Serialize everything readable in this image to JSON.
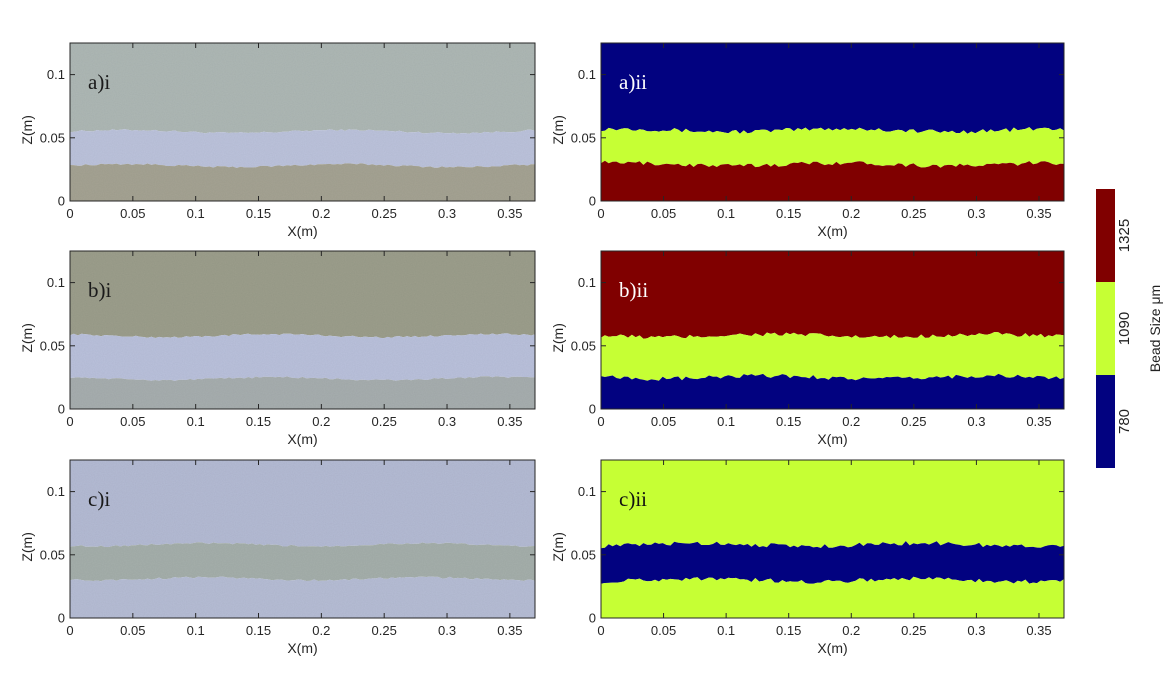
{
  "colors": {
    "c780": "#020280",
    "c1090": "#c6ff34",
    "c1325": "#800000",
    "photo_light": "#b6bfd8",
    "photo_mid": "#aab2a8",
    "photo_dark": "#9a9a86"
  },
  "colorbar": {
    "title": "Bead Size μm",
    "levels": [
      {
        "value": "780",
        "color": "#020280"
      },
      {
        "value": "1090",
        "color": "#c6ff34"
      },
      {
        "value": "1325",
        "color": "#800000"
      }
    ]
  },
  "chart_data": [
    {
      "id": "a-i",
      "type": "heatmap",
      "style": "photo",
      "panel_label": "a)i",
      "xlabel": "X(m)",
      "ylabel": "Z(m)",
      "xlim": [
        0,
        0.37
      ],
      "ylim": [
        0,
        0.125
      ],
      "xticks": [
        "0",
        "0.05",
        "0.1",
        "0.15",
        "0.2",
        "0.25",
        "0.3",
        "0.35"
      ],
      "yticks": [
        "0",
        "0.05",
        "0.1"
      ],
      "bands": [
        {
          "z_from": 0.125,
          "z_to": 0.055,
          "color": "#aeb8b5"
        },
        {
          "z_from": 0.055,
          "z_to": 0.028,
          "color": "#bcc3dc"
        },
        {
          "z_from": 0.028,
          "z_to": 0,
          "color": "#a5a393"
        }
      ]
    },
    {
      "id": "a-ii",
      "type": "heatmap",
      "style": "classified",
      "panel_label": "a)ii",
      "xlabel": "X(m)",
      "ylabel": "Z(m)",
      "xlim": [
        0,
        0.37
      ],
      "ylim": [
        0,
        0.125
      ],
      "xticks": [
        "0",
        "0.05",
        "0.1",
        "0.15",
        "0.2",
        "0.25",
        "0.3",
        "0.35"
      ],
      "yticks": [
        "0",
        "0.05",
        "0.1"
      ],
      "bands": [
        {
          "z_from": 0.125,
          "z_to": 0.056,
          "color": "#020280",
          "bead_size": 780
        },
        {
          "z_from": 0.056,
          "z_to": 0.029,
          "color": "#c6ff34",
          "bead_size": 1090
        },
        {
          "z_from": 0.029,
          "z_to": 0,
          "color": "#800000",
          "bead_size": 1325
        }
      ]
    },
    {
      "id": "b-i",
      "type": "heatmap",
      "style": "photo",
      "panel_label": "b)i",
      "xlabel": "X(m)",
      "ylabel": "Z(m)",
      "xlim": [
        0,
        0.37
      ],
      "ylim": [
        0,
        0.125
      ],
      "xticks": [
        "0",
        "0.05",
        "0.1",
        "0.15",
        "0.2",
        "0.25",
        "0.3",
        "0.35"
      ],
      "yticks": [
        "0",
        "0.05",
        "0.1"
      ],
      "bands": [
        {
          "z_from": 0.125,
          "z_to": 0.058,
          "color": "#9c9e8c"
        },
        {
          "z_from": 0.058,
          "z_to": 0.024,
          "color": "#bac1dc"
        },
        {
          "z_from": 0.024,
          "z_to": 0,
          "color": "#a7aeaf"
        }
      ]
    },
    {
      "id": "b-ii",
      "type": "heatmap",
      "style": "classified",
      "panel_label": "b)ii",
      "xlabel": "X(m)",
      "ylabel": "Z(m)",
      "xlim": [
        0,
        0.37
      ],
      "ylim": [
        0,
        0.125
      ],
      "xticks": [
        "0",
        "0.05",
        "0.1",
        "0.15",
        "0.2",
        "0.25",
        "0.3",
        "0.35"
      ],
      "yticks": [
        "0",
        "0.05",
        "0.1"
      ],
      "bands": [
        {
          "z_from": 0.125,
          "z_to": 0.058,
          "color": "#800000",
          "bead_size": 1325
        },
        {
          "z_from": 0.058,
          "z_to": 0.025,
          "color": "#c6ff34",
          "bead_size": 1090
        },
        {
          "z_from": 0.025,
          "z_to": 0,
          "color": "#020280",
          "bead_size": 780
        }
      ]
    },
    {
      "id": "c-i",
      "type": "heatmap",
      "style": "photo",
      "panel_label": "c)i",
      "xlabel": "X(m)",
      "ylabel": "Z(m)",
      "xlim": [
        0,
        0.37
      ],
      "ylim": [
        0,
        0.125
      ],
      "xticks": [
        "0",
        "0.05",
        "0.1",
        "0.15",
        "0.2",
        "0.25",
        "0.3",
        "0.35"
      ],
      "yticks": [
        "0",
        "0.05",
        "0.1"
      ],
      "bands": [
        {
          "z_from": 0.125,
          "z_to": 0.058,
          "color": "#b4bbd4"
        },
        {
          "z_from": 0.058,
          "z_to": 0.031,
          "color": "#a5afab"
        },
        {
          "z_from": 0.031,
          "z_to": 0,
          "color": "#b6bdd5"
        }
      ]
    },
    {
      "id": "c-ii",
      "type": "heatmap",
      "style": "classified",
      "panel_label": "c)ii",
      "xlabel": "X(m)",
      "ylabel": "Z(m)",
      "xlim": [
        0,
        0.37
      ],
      "ylim": [
        0,
        0.125
      ],
      "xticks": [
        "0",
        "0.05",
        "0.1",
        "0.15",
        "0.2",
        "0.25",
        "0.3",
        "0.35"
      ],
      "yticks": [
        "0",
        "0.05",
        "0.1"
      ],
      "bands": [
        {
          "z_from": 0.125,
          "z_to": 0.058,
          "color": "#c6ff34",
          "bead_size": 1090
        },
        {
          "z_from": 0.058,
          "z_to": 0.03,
          "color": "#020280",
          "bead_size": 780
        },
        {
          "z_from": 0.03,
          "z_to": 0,
          "color": "#c6ff34",
          "bead_size": 1090
        }
      ]
    }
  ]
}
